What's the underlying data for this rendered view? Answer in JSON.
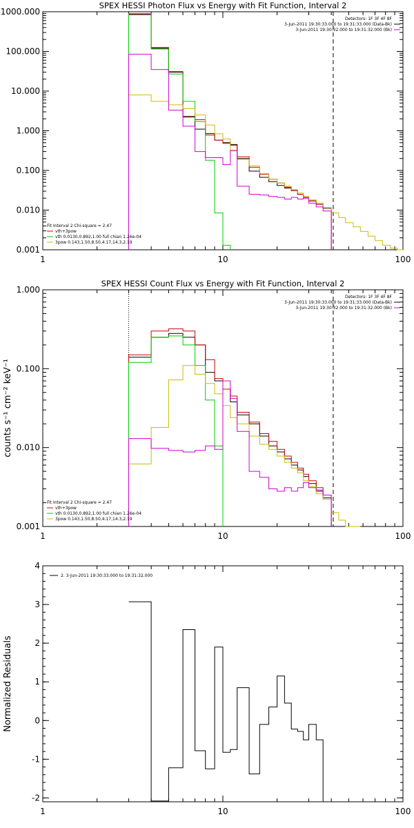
{
  "chart_data": [
    {
      "type": "line",
      "title": "SPEX HESSI Photon Flux vs Energy with Fit Function, Interval 2",
      "ylabel": "",
      "xlog": true,
      "ylog": true,
      "xlim": [
        1,
        100
      ],
      "ylim": [
        0.001,
        1000
      ],
      "x_ticks": [
        "1",
        "10",
        "100"
      ],
      "y_ticks": [
        "1000.000",
        "100.000",
        "10.000",
        "1.000",
        "0.100",
        "0.010",
        "0.001"
      ],
      "vlines": [
        {
          "x": 3,
          "style": "dotted"
        },
        {
          "x": 41,
          "style": "dashed"
        }
      ],
      "legend_top": {
        "placement": "top-right",
        "lines": [
          "Detectors: 1F 3F 4F 8F",
          "3-Jun-2011 19:30:33.000 to 19:31:33.000 (Data-Bk)",
          "3-Jun-2011 19:30:32.000 to 19:31:32.000 (Bk)"
        ]
      },
      "legend_bottom": {
        "placement": "bottom-left",
        "lines": [
          "Fit Interval 2   Chi-square = 2.47",
          "vth+3pow",
          "vth 0.0130,0.892,1.00  full chian 1.26e-04",
          "3pow 0.143,1.50,8.50,4.17,14.3,2.19"
        ]
      },
      "series": [
        {
          "name": "Data-Bk",
          "color": "#000000",
          "edges": [
            3,
            4,
            5,
            6,
            7,
            8,
            9,
            10,
            11,
            12,
            14,
            16,
            18,
            20,
            22,
            24,
            26,
            28,
            30,
            33,
            36,
            40
          ],
          "values": [
            850,
            120,
            30,
            2.3,
            1.1,
            0.85,
            0.58,
            0.5,
            0.45,
            0.2,
            0.096,
            0.067,
            0.052,
            0.042,
            0.036,
            0.031,
            0.025,
            0.021,
            0.017,
            0.014,
            0.0112
          ]
        },
        {
          "name": "vth+3pow",
          "color": "#cc0000",
          "edges": [
            3,
            4,
            5,
            6,
            7,
            8,
            9,
            10,
            11,
            12,
            14,
            16,
            18,
            20,
            22,
            24,
            26,
            28,
            30,
            33,
            36,
            40
          ],
          "values": [
            880,
            125,
            31,
            2.2,
            1.9,
            0.78,
            0.58,
            0.48,
            0.43,
            0.22,
            0.12,
            0.08,
            0.06,
            0.048,
            0.038,
            0.031,
            0.025,
            0.021,
            0.017,
            0.014,
            0.0115
          ]
        },
        {
          "name": "vth",
          "color": "#00cc00",
          "edges": [
            3,
            4,
            5,
            6,
            7,
            8,
            9,
            10,
            11
          ],
          "values": [
            900,
            115,
            27,
            5.5,
            1.7,
            0.18,
            0.0085,
            0.0013
          ]
        },
        {
          "name": "3pow",
          "color": "#ccbb00",
          "edges": [
            3,
            4,
            5,
            6,
            7,
            8,
            9,
            10,
            11,
            12,
            14,
            16,
            18,
            20,
            22,
            24,
            26,
            28,
            30,
            33,
            36,
            40,
            44,
            48,
            53,
            58,
            64,
            70,
            77,
            85,
            93,
            100
          ],
          "values": [
            8,
            5.5,
            4.5,
            3.6,
            2.5,
            1.4,
            0.84,
            0.62,
            0.31,
            0.19,
            0.13,
            0.083,
            0.06,
            0.048,
            0.04,
            0.033,
            0.027,
            0.022,
            0.018,
            0.015,
            0.0115,
            0.0085,
            0.0065,
            0.0048,
            0.0038,
            0.0029,
            0.0022,
            0.0017,
            0.0013,
            0.0011,
            0.001
          ]
        },
        {
          "name": "Bk",
          "color": "#cc00cc",
          "edges": [
            3,
            4,
            5,
            6,
            7,
            8,
            9,
            10,
            11,
            12,
            14,
            16,
            18,
            20,
            22,
            24,
            26,
            28,
            30,
            33,
            36,
            40
          ],
          "values": [
            85,
            35,
            3.3,
            1.3,
            0.3,
            0.21,
            0.21,
            0.14,
            0.32,
            0.04,
            0.025,
            0.024,
            0.022,
            0.021,
            0.019,
            0.021,
            0.019,
            0.02,
            0.015,
            0.012,
            0.0095
          ]
        }
      ]
    },
    {
      "type": "line",
      "title": "SPEX HESSI Count Flux vs Energy with Fit Function, Interval 2",
      "ylabel": "counts s⁻¹ cm⁻² keV⁻¹",
      "xlog": true,
      "ylog": true,
      "xlim": [
        1,
        100
      ],
      "ylim": [
        0.001,
        1
      ],
      "x_ticks": [
        "1",
        "10",
        "100"
      ],
      "y_ticks": [
        "1.000",
        "0.100",
        "0.010",
        "0.001"
      ],
      "vlines": [
        {
          "x": 3,
          "style": "dotted"
        },
        {
          "x": 41,
          "style": "dashed"
        }
      ],
      "legend_top": {
        "placement": "top-right",
        "lines": [
          "Detectors: 1F 3F 4F 8F",
          "3-Jun-2011 19:30:33.000 to 19:31:33.000 (Data-Bk)",
          "3-Jun-2011 19:30:32.000 to 19:31:32.000 (Bk)"
        ]
      },
      "legend_bottom": {
        "placement": "bottom-left",
        "lines": [
          "Fit Interval 2   Chi-square = 2.47",
          "vth+3pow",
          "vth 0.0130,0.892,1.00  full chian 1.26e-04",
          "3pow 0.143,1.50,8.50,4.17,14.3,2.19"
        ]
      },
      "series": [
        {
          "name": "Data-Bk",
          "color": "#000000",
          "edges": [
            3,
            4,
            5,
            6,
            7,
            8,
            9,
            10,
            11,
            12,
            14,
            16,
            18,
            20,
            22,
            24,
            26,
            28,
            30,
            33,
            36,
            40
          ],
          "values": [
            0.14,
            0.25,
            0.28,
            0.25,
            0.2,
            0.09,
            0.07,
            0.055,
            0.038,
            0.026,
            0.02,
            0.014,
            0.0105,
            0.0088,
            0.0072,
            0.006,
            0.0052,
            0.0043,
            0.0035,
            0.0028,
            0.0023
          ]
        },
        {
          "name": "vth+3pow",
          "color": "#cc0000",
          "edges": [
            3,
            4,
            5,
            6,
            7,
            8,
            9,
            10,
            11,
            12,
            14,
            16,
            18,
            20,
            22,
            24,
            26,
            28,
            30,
            33,
            36,
            40
          ],
          "values": [
            0.15,
            0.3,
            0.32,
            0.3,
            0.2,
            0.13,
            0.075,
            0.055,
            0.045,
            0.028,
            0.021,
            0.015,
            0.012,
            0.0095,
            0.0078,
            0.0065,
            0.0055,
            0.0046,
            0.0038,
            0.0031,
            0.0025
          ]
        },
        {
          "name": "vth",
          "color": "#00cc00",
          "edges": [
            3,
            4,
            5,
            6,
            7,
            8,
            9,
            10
          ],
          "values": [
            0.12,
            0.25,
            0.26,
            0.2,
            0.11,
            0.04,
            0.0105
          ]
        },
        {
          "name": "3pow",
          "color": "#ccbb00",
          "edges": [
            3,
            4,
            5,
            6,
            7,
            8,
            9,
            10,
            11,
            12,
            14,
            16,
            18,
            20,
            22,
            24,
            26,
            28,
            30,
            33,
            36,
            40,
            44,
            48,
            53,
            58
          ],
          "values": [
            0.0062,
            0.018,
            0.072,
            0.11,
            0.085,
            0.065,
            0.048,
            0.034,
            0.024,
            0.02,
            0.014,
            0.011,
            0.0095,
            0.0078,
            0.0065,
            0.0055,
            0.0048,
            0.0038,
            0.0032,
            0.0026,
            0.0022,
            0.0015,
            0.0012,
            0.001,
            0.001
          ]
        },
        {
          "name": "Bk",
          "color": "#cc00cc",
          "edges": [
            3,
            4,
            5,
            6,
            7,
            8,
            9,
            10,
            11,
            12,
            14,
            16,
            18,
            20,
            22,
            24,
            26,
            28,
            30,
            33,
            36,
            40
          ],
          "values": [
            0.013,
            0.0098,
            0.0092,
            0.0088,
            0.0092,
            0.0105,
            0.0095,
            0.07,
            0.042,
            0.016,
            0.005,
            0.0042,
            0.003,
            0.0028,
            0.0031,
            0.0028,
            0.0031,
            0.0036,
            0.0031,
            0.0029,
            0.0025
          ]
        }
      ]
    },
    {
      "type": "line",
      "title": "",
      "ylabel": "Normalized Residuals",
      "xlog": true,
      "ylog": false,
      "xlim": [
        1,
        100
      ],
      "ylim": [
        -2.1,
        4
      ],
      "x_ticks": [
        "1",
        "10",
        "100"
      ],
      "y_ticks": [
        "4",
        "3",
        "2",
        "1",
        "0",
        "-1",
        "-2"
      ],
      "legend_top": {
        "placement": "top-left",
        "lines": [
          "2.  3-Jun-2011 19:30:33.000 to 19:31:32.000"
        ]
      },
      "series": [
        {
          "name": "",
          "color": "#000000",
          "edges": [
            3,
            4,
            5,
            6,
            7,
            8,
            9,
            10,
            11,
            12,
            14,
            16,
            18,
            20,
            22,
            24,
            26,
            28,
            30,
            33,
            36,
            40
          ],
          "values": [
            3.07,
            -2.08,
            -1.22,
            2.35,
            -0.78,
            -1.25,
            1.9,
            -0.82,
            -0.75,
            0.85,
            -1.38,
            -0.1,
            0.35,
            1.15,
            0.45,
            -0.22,
            -0.28,
            -0.5,
            -0.1,
            -0.5,
            -2.1
          ]
        }
      ]
    }
  ]
}
